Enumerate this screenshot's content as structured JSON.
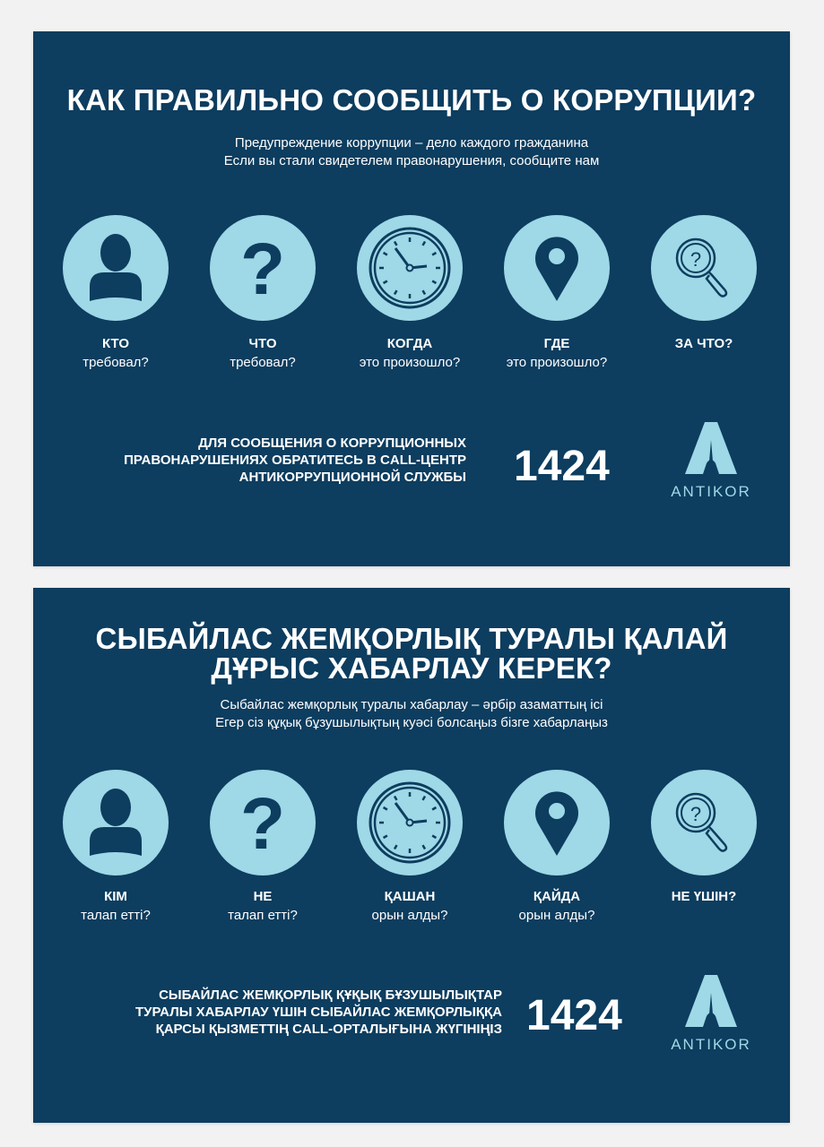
{
  "colors": {
    "background": "#0d3d5f",
    "accent": "#9fd8e6",
    "text": "#ffffff"
  },
  "panels": [
    {
      "title_lines": [
        "КАК ПРАВИЛЬНО СООБЩИТЬ О КОРРУПЦИИ?"
      ],
      "subtitle_lines": [
        "Предупреждение коррупции – дело каждого гражданина",
        "Если вы стали свидетелем правонарушения, сообщите нам"
      ],
      "items": [
        {
          "icon": "person-icon",
          "head": "КТО",
          "text": "требовал?"
        },
        {
          "icon": "question-mark-icon",
          "head": "ЧТО",
          "text": "требовал?"
        },
        {
          "icon": "clock-icon",
          "head": "КОГДА",
          "text": "это произошло?"
        },
        {
          "icon": "location-pin-icon",
          "head": "ГДЕ",
          "text": "это произошло?"
        },
        {
          "icon": "magnifier-question-icon",
          "head": "ЗА ЧТО?",
          "text": ""
        }
      ],
      "cta_lines": [
        "ДЛЯ СООБЩЕНИЯ О КОРРУПЦИОННЫХ",
        "ПРАВОНАРУШЕНИЯХ ОБРАТИТЕСЬ В CALL-ЦЕНТР",
        "АНТИКОРРУПЦИОННОЙ СЛУЖБЫ"
      ],
      "phone": "1424",
      "logo_text": "ANTIKOR"
    },
    {
      "title_lines": [
        "СЫБАЙЛАС ЖЕМҚОРЛЫҚ ТУРАЛЫ ҚАЛАЙ",
        "ДҰРЫС ХАБАРЛАУ КЕРЕК?"
      ],
      "subtitle_lines": [
        "Сыбайлас жемқорлық туралы хабарлау – әрбір азаматтың ісі",
        "Егер сіз құқық бұзушылықтың куәсі болсаңыз бізге хабарлаңыз"
      ],
      "items": [
        {
          "icon": "person-icon",
          "head": "КІМ",
          "text": "талап етті?"
        },
        {
          "icon": "question-mark-icon",
          "head": "НЕ",
          "text": "талап етті?"
        },
        {
          "icon": "clock-icon",
          "head": "ҚАШАН",
          "text": "орын алды?"
        },
        {
          "icon": "location-pin-icon",
          "head": "ҚАЙДА",
          "text": "орын алды?"
        },
        {
          "icon": "magnifier-question-icon",
          "head": "НЕ ҮШІН?",
          "text": ""
        }
      ],
      "cta_lines": [
        "СЫБАЙЛАС ЖЕМҚОРЛЫҚ ҚҰҚЫҚ БҰЗУШЫЛЫҚТАР",
        "ТУРАЛЫ ХАБАРЛАУ ҮШІН СЫБАЙЛАС ЖЕМҚОРЛЫҚҚА",
        "ҚАРСЫ ҚЫЗМЕТТІҢ  CALL-ОРТАЛЫҒЫНА ЖҮГІНІҢІЗ"
      ],
      "phone": "1424",
      "logo_text": "ANTIKOR"
    }
  ]
}
